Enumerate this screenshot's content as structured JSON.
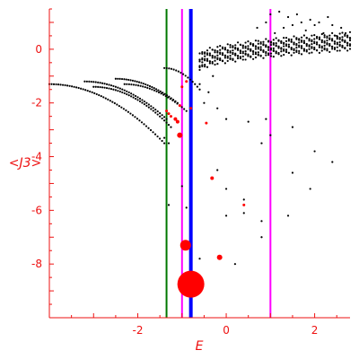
{
  "chart_data": {
    "type": "scatter",
    "xlabel": "E",
    "ylabel": "<J3>",
    "xlim": [
      -4.0,
      2.8
    ],
    "ylim": [
      -10.0,
      1.5
    ],
    "x_ticks": [
      -2,
      0,
      2
    ],
    "x_tick_labels": [
      "-2",
      "0",
      "2"
    ],
    "y_ticks": [
      0,
      -2,
      -4,
      -6,
      -8
    ],
    "y_tick_labels": [
      "0",
      "-2",
      "-4",
      "-6",
      "-8"
    ],
    "grid": false,
    "axis_color": "#ee1111",
    "vertical_lines": [
      {
        "x": -1.35,
        "color": "#007700"
      },
      {
        "x": -1.0,
        "color": "#ff00ff"
      },
      {
        "x": -0.8,
        "color": "#0000ff"
      },
      {
        "x": 1.0,
        "color": "#ff00ff"
      }
    ],
    "series": [
      {
        "color": "#000000",
        "arms": [
          {
            "x0": -4.0,
            "y0": -1.3,
            "x1": -1.4,
            "y1": -3.5,
            "n": 52
          },
          {
            "x0": -3.2,
            "y0": -1.2,
            "x1": -1.35,
            "y1": -2.6,
            "n": 38
          },
          {
            "x0": -3.0,
            "y0": -1.4,
            "x1": -1.25,
            "y1": -2.9,
            "n": 36
          },
          {
            "x0": -2.5,
            "y0": -1.1,
            "x1": -1.1,
            "y1": -2.0,
            "n": 30
          },
          {
            "x0": -2.3,
            "y0": -1.3,
            "x1": -0.9,
            "y1": -2.3,
            "n": 28
          },
          {
            "x0": -1.4,
            "y0": -0.7,
            "x1": -0.6,
            "y1": -1.5,
            "n": 16
          }
        ],
        "band": {
          "x0": -0.6,
          "x1": 2.8,
          "y_start": -0.5,
          "y_end": 0.3,
          "rows": 7,
          "per_row": 60
        },
        "upper_scatter": [
          [
            1.2,
            1.4
          ],
          [
            1.4,
            1.2
          ],
          [
            1.6,
            1.3
          ],
          [
            1.9,
            1.1
          ],
          [
            2.1,
            1.0
          ],
          [
            2.4,
            0.9
          ],
          [
            2.6,
            0.8
          ],
          [
            1.5,
            0.9
          ],
          [
            1.8,
            0.7
          ],
          [
            2.2,
            0.6
          ],
          [
            2.5,
            0.5
          ],
          [
            1.1,
            0.6
          ],
          [
            1.7,
            1.0
          ],
          [
            2.0,
            0.9
          ],
          [
            0.9,
            1.0
          ],
          [
            1.3,
            0.8
          ],
          [
            2.3,
            1.2
          ],
          [
            2.7,
            0.6
          ],
          [
            0.7,
            0.8
          ],
          [
            1.0,
            1.3
          ]
        ],
        "points": [
          [
            -0.6,
            -1.3
          ],
          [
            -0.4,
            -1.6
          ],
          [
            -0.3,
            -1.0
          ],
          [
            -0.5,
            -2.0
          ],
          [
            -0.2,
            -2.2
          ],
          [
            0.0,
            -2.6
          ],
          [
            0.5,
            -2.7
          ],
          [
            0.9,
            -2.6
          ],
          [
            0.8,
            -3.5
          ],
          [
            1.0,
            -3.2
          ],
          [
            1.5,
            -2.9
          ],
          [
            2.0,
            -3.8
          ],
          [
            2.4,
            -4.2
          ],
          [
            1.5,
            -4.6
          ],
          [
            0.0,
            -5.2
          ],
          [
            0.4,
            -5.6
          ],
          [
            1.9,
            -5.2
          ],
          [
            -0.9,
            -5.9
          ],
          [
            0.4,
            -6.1
          ],
          [
            0.0,
            -6.2
          ],
          [
            0.8,
            -6.4
          ],
          [
            1.4,
            -6.2
          ],
          [
            0.8,
            -7.0
          ],
          [
            -0.6,
            -7.8
          ],
          [
            0.2,
            -8.0
          ],
          [
            -1.3,
            -5.8
          ],
          [
            -1.0,
            -5.1
          ],
          [
            -0.2,
            -4.5
          ],
          [
            -1.4,
            -3.3
          ],
          [
            -1.3,
            -3.5
          ]
        ]
      },
      {
        "color": "#ff0000",
        "points": [
          {
            "x": -1.35,
            "y": -2.3,
            "r": 1.5
          },
          {
            "x": -1.3,
            "y": -2.4,
            "r": 1.5
          },
          {
            "x": -1.25,
            "y": -2.5,
            "r": 1.5
          },
          {
            "x": -1.15,
            "y": -2.6,
            "r": 2
          },
          {
            "x": -1.1,
            "y": -2.7,
            "r": 2
          },
          {
            "x": -1.05,
            "y": -2.1,
            "r": 1.5
          },
          {
            "x": -1.0,
            "y": -1.4,
            "r": 1.5
          },
          {
            "x": -0.9,
            "y": -1.2,
            "r": 1.5
          },
          {
            "x": -1.05,
            "y": -3.2,
            "r": 3
          },
          {
            "x": -0.8,
            "y": -2.2,
            "r": 1.5
          },
          {
            "x": -0.45,
            "y": -2.75,
            "r": 1.5
          },
          {
            "x": -0.32,
            "y": -4.8,
            "r": 2
          },
          {
            "x": 0.4,
            "y": -5.8,
            "r": 1.5
          },
          {
            "x": -0.92,
            "y": -7.3,
            "r": 6
          },
          {
            "x": -0.15,
            "y": -7.75,
            "r": 3
          },
          {
            "x": -0.8,
            "y": -8.75,
            "r": 15
          }
        ]
      }
    ]
  }
}
